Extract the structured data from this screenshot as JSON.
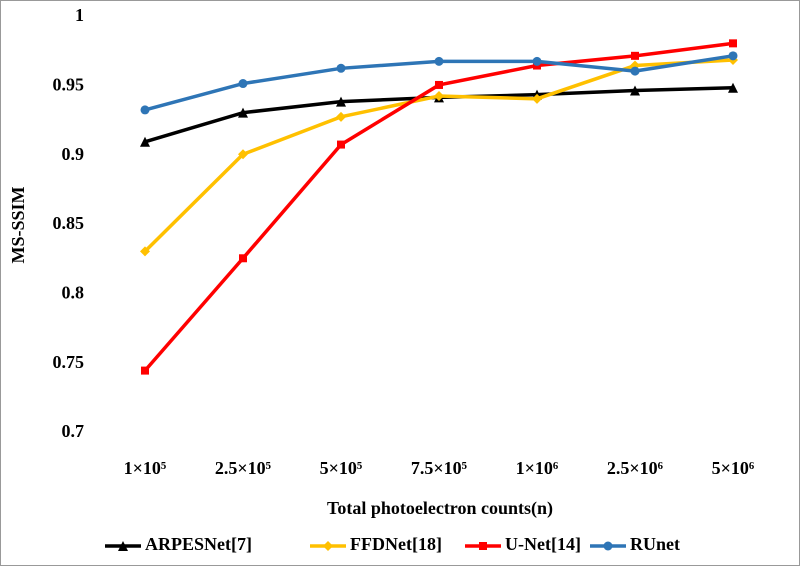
{
  "chart_data": {
    "type": "line",
    "x_label": "Total photoelectron counts(n)",
    "y_label": "MS-SSIM",
    "categories": [
      "1×10⁵",
      "2.5×10⁵",
      "5×10⁵",
      "7.5×10⁵",
      "1×10⁶",
      "2.5×10⁶",
      "5×10⁶"
    ],
    "series": [
      {
        "name": "ARPESNet[7]",
        "color": "#000000",
        "marker": "triangle",
        "values": [
          0.91,
          0.931,
          0.939,
          0.942,
          0.944,
          0.947,
          0.949
        ]
      },
      {
        "name": "FFDNet[18]",
        "color": "#ffc000",
        "marker": "diamond",
        "values": [
          0.831,
          0.901,
          0.928,
          0.943,
          0.941,
          0.965,
          0.969
        ]
      },
      {
        "name": "U-Net[14]",
        "color": "#ff0000",
        "marker": "square",
        "values": [
          0.745,
          0.826,
          0.908,
          0.951,
          0.965,
          0.972,
          0.981
        ]
      },
      {
        "name": "RUnet",
        "color": "#2e75b6",
        "marker": "circle",
        "values": [
          0.933,
          0.952,
          0.963,
          0.968,
          0.968,
          0.961,
          0.972
        ]
      }
    ],
    "ylim": [
      0.7,
      1
    ],
    "yticks": [
      0.7,
      0.75,
      0.8,
      0.85,
      0.9,
      0.95,
      1
    ],
    "grid": false,
    "legend": "bottom"
  }
}
